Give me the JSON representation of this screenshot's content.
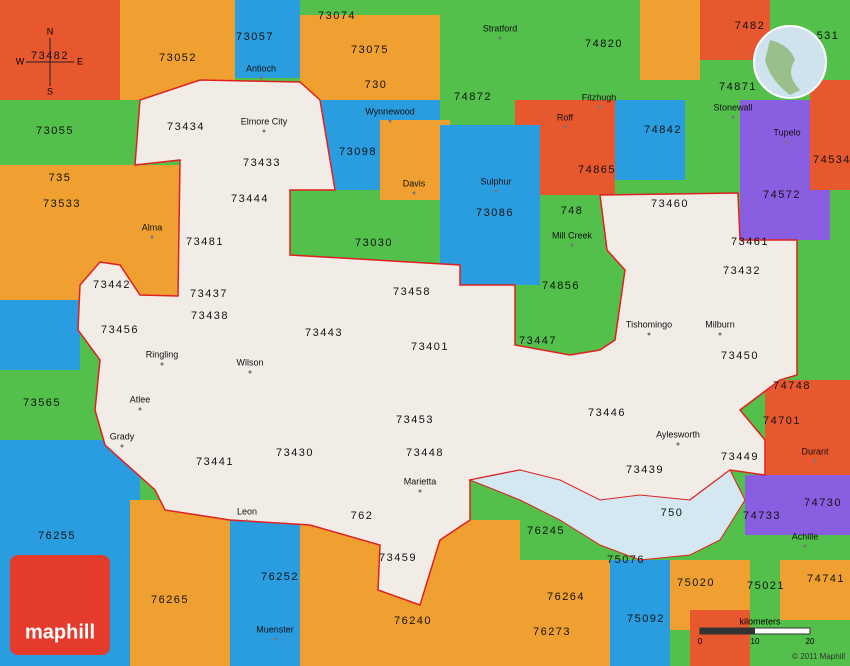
{
  "zips": [
    "73074",
    "73057",
    "73075",
    "73052",
    "73482",
    "730",
    "74820",
    "7482",
    "531",
    "74872",
    "74871",
    "73055",
    "73434",
    "73433",
    "73098",
    "74842",
    "74865",
    "74534",
    "735",
    "73533",
    "73444",
    "74572",
    "748",
    "73460",
    "73086",
    "73481",
    "73030",
    "73461",
    "73432",
    "73442",
    "73437",
    "73458",
    "74856",
    "73438",
    "73456",
    "73443",
    "73401",
    "73447",
    "73450",
    "74748",
    "73565",
    "73453",
    "73446",
    "74701",
    "73448",
    "73449",
    "73430",
    "73441",
    "73439",
    "74730",
    "762",
    "750",
    "74733",
    "76255",
    "76245",
    "73459",
    "75076",
    "76252",
    "75020",
    "75021",
    "74741",
    "76265",
    "76264",
    "76240",
    "75092",
    "76273"
  ],
  "towns": [
    "Antioch",
    "Elmore City",
    "Wynnewood",
    "Stratford",
    "Fitzhugh",
    "Stonewall",
    "Roff",
    "Tupelo",
    "Davis",
    "Sulphur",
    "Alma",
    "Mill Creek",
    "Ringling",
    "Wilson",
    "Atlee",
    "Grady",
    "Tishomingo",
    "Milburn",
    "Aylesworth",
    "Marietta",
    "Leon",
    "Durant",
    "Achille",
    "Muenster"
  ],
  "compass": {
    "north": "N",
    "south": "S",
    "east": "E",
    "west": "W"
  },
  "scale": {
    "unit": "kilometers",
    "ticks": [
      "0",
      "10",
      "20"
    ]
  },
  "brand": "maphill",
  "copyright": "© 2011 Maphill"
}
